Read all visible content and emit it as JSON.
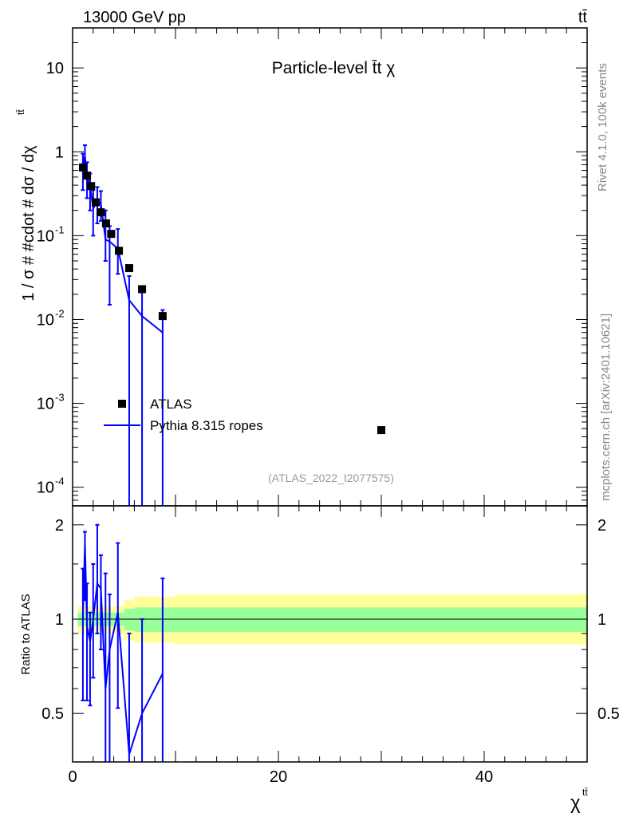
{
  "header": {
    "energy": "13000 GeV pp",
    "process": "tt̄"
  },
  "side": {
    "rivet": "Rivet 4.1.0,  100k events",
    "source": "mcplots.cern.ch [arXiv:2401.10621]"
  },
  "main": {
    "title": "Particle-level t̄t χ",
    "ylabel": "1 / σ # #cdot # dσ / dχ",
    "ylabel_sup": "tt̄",
    "analysis": "(ATLAS_2022_I2077575)",
    "legend": {
      "data": "ATLAS",
      "mc": "Pythia 8.315 ropes"
    },
    "yticks": [
      {
        "base": "10",
        "exp": "-4",
        "v": 0.0001
      },
      {
        "base": "10",
        "exp": "-3",
        "v": 0.001
      },
      {
        "base": "10",
        "exp": "-2",
        "v": 0.01
      },
      {
        "base": "10",
        "exp": "-1",
        "v": 0.1
      },
      {
        "base": "1",
        "exp": "",
        "v": 1
      },
      {
        "base": "10",
        "exp": "",
        "v": 10
      }
    ]
  },
  "ratio": {
    "ylabel": "Ratio to ATLAS",
    "yticks": [
      {
        "label": "0.5",
        "v": 0.5
      },
      {
        "label": "1",
        "v": 1
      },
      {
        "label": "2",
        "v": 2
      }
    ]
  },
  "xaxis": {
    "label": "χ",
    "label_sup": "tt̄",
    "ticks": [
      {
        "label": "0",
        "v": 0
      },
      {
        "label": "20",
        "v": 20
      },
      {
        "label": "40",
        "v": 40
      }
    ]
  },
  "colors": {
    "data": "#000000",
    "mc": "#0000ff",
    "band_inner": "#99ff99",
    "band_outer": "#ffff99"
  },
  "chart_data": {
    "type": "scatter",
    "x_range": [
      0,
      50
    ],
    "y_range_log": [
      6e-05,
      30
    ],
    "ratio_range": [
      0.35,
      2.3
    ],
    "data": {
      "name": "ATLAS",
      "points": [
        {
          "x": 1.0,
          "y": 0.65
        },
        {
          "x": 1.4,
          "y": 0.52
        },
        {
          "x": 1.8,
          "y": 0.39
        },
        {
          "x": 2.25,
          "y": 0.25
        },
        {
          "x": 2.75,
          "y": 0.19
        },
        {
          "x": 3.25,
          "y": 0.14
        },
        {
          "x": 3.75,
          "y": 0.105
        },
        {
          "x": 4.5,
          "y": 0.066
        },
        {
          "x": 5.5,
          "y": 0.041
        },
        {
          "x": 6.75,
          "y": 0.023
        },
        {
          "x": 8.75,
          "y": 0.011
        },
        {
          "x": 30.0,
          "y": 0.00048
        }
      ]
    },
    "mc": {
      "name": "Pythia 8.315 ropes",
      "points": [
        {
          "x": 1.0,
          "y": 0.65,
          "lo": 0.35,
          "hi": 0.95
        },
        {
          "x": 1.2,
          "y": 0.9,
          "lo": 0.6,
          "hi": 1.2
        },
        {
          "x": 1.4,
          "y": 0.5,
          "lo": 0.28,
          "hi": 0.75
        },
        {
          "x": 1.7,
          "y": 0.4,
          "lo": 0.2,
          "hi": 0.55
        },
        {
          "x": 2.0,
          "y": 0.21,
          "lo": 0.1,
          "hi": 0.35
        },
        {
          "x": 2.4,
          "y": 0.26,
          "lo": 0.14,
          "hi": 0.38
        },
        {
          "x": 2.75,
          "y": 0.24,
          "lo": 0.15,
          "hi": 0.34
        },
        {
          "x": 3.2,
          "y": 0.09,
          "lo": 0.05,
          "hi": 0.2
        },
        {
          "x": 3.6,
          "y": 0.085,
          "lo": 0.015,
          "hi": 0.13
        },
        {
          "x": 4.4,
          "y": 0.07,
          "lo": 0.035,
          "hi": 0.12
        },
        {
          "x": 5.5,
          "y": 0.017,
          "lo": null,
          "hi": 0.033
        },
        {
          "x": 6.75,
          "y": 0.011,
          "lo": null,
          "hi": 0.023
        },
        {
          "x": 8.75,
          "y": 0.007,
          "lo": null,
          "hi": 0.013
        }
      ]
    },
    "ratio_mc": [
      {
        "x": 1.0,
        "y": 1.0,
        "lo": 0.55,
        "hi": 1.45
      },
      {
        "x": 1.2,
        "y": 1.75,
        "lo": 1.15,
        "hi": 1.9
      },
      {
        "x": 1.4,
        "y": 0.95,
        "lo": 0.55,
        "hi": 1.3
      },
      {
        "x": 1.7,
        "y": 0.85,
        "lo": 0.53,
        "hi": 1.05
      },
      {
        "x": 2.0,
        "y": 1.0,
        "lo": 0.65,
        "hi": 1.5
      },
      {
        "x": 2.4,
        "y": 1.3,
        "lo": 0.9,
        "hi": 2.0
      },
      {
        "x": 2.75,
        "y": 1.25,
        "lo": 0.8,
        "hi": 1.6
      },
      {
        "x": 3.2,
        "y": 0.6,
        "lo": null,
        "hi": 1.4
      },
      {
        "x": 3.6,
        "y": 0.8,
        "lo": null,
        "hi": 1.2
      },
      {
        "x": 4.4,
        "y": 1.05,
        "lo": 0.52,
        "hi": 1.75
      },
      {
        "x": 5.5,
        "y": 0.37,
        "lo": null,
        "hi": 0.9
      },
      {
        "x": 6.75,
        "y": 0.5,
        "lo": null,
        "hi": 1.0
      },
      {
        "x": 8.75,
        "y": 0.67,
        "lo": null,
        "hi": 1.35
      }
    ],
    "ratio_band": [
      {
        "x0": 0.5,
        "x1": 5.0,
        "in_lo": 0.95,
        "in_hi": 1.05,
        "out_lo": 0.9,
        "out_hi": 1.1
      },
      {
        "x0": 5.0,
        "x1": 6.0,
        "in_lo": 0.92,
        "in_hi": 1.08,
        "out_lo": 0.86,
        "out_hi": 1.15
      },
      {
        "x0": 6.0,
        "x1": 7.5,
        "in_lo": 0.91,
        "in_hi": 1.09,
        "out_lo": 0.84,
        "out_hi": 1.18
      },
      {
        "x0": 7.5,
        "x1": 10.0,
        "in_lo": 0.91,
        "in_hi": 1.09,
        "out_lo": 0.84,
        "out_hi": 1.18
      },
      {
        "x0": 10.0,
        "x1": 50.0,
        "in_lo": 0.91,
        "in_hi": 1.09,
        "out_lo": 0.83,
        "out_hi": 1.2
      }
    ]
  }
}
